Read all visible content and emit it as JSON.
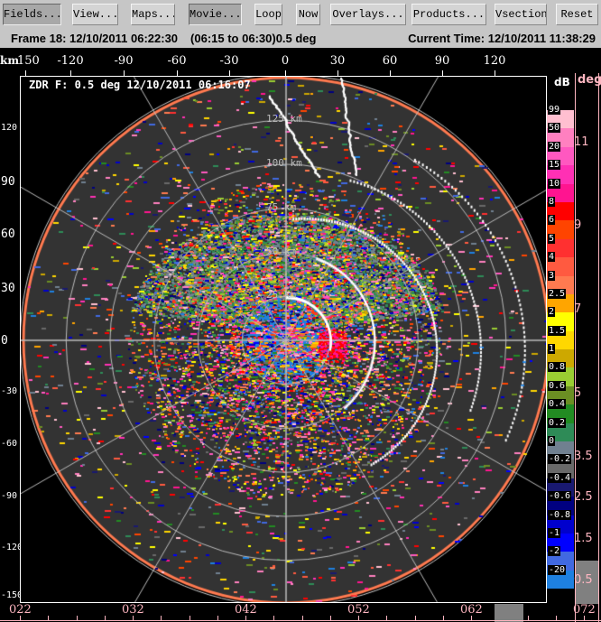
{
  "toolbar": {
    "buttons": [
      {
        "label": "Fields...",
        "pressed": true
      },
      {
        "label": "View...",
        "pressed": false
      },
      {
        "label": "Maps...",
        "pressed": false
      },
      {
        "label": "Movie...",
        "pressed": true
      },
      {
        "label": "Loop",
        "pressed": false
      },
      {
        "label": "Now",
        "pressed": false
      },
      {
        "label": "Overlays...",
        "pressed": false
      },
      {
        "label": "Products...",
        "pressed": false
      },
      {
        "label": "Vsection",
        "pressed": false
      },
      {
        "label": "Reset",
        "pressed": false
      }
    ]
  },
  "status": {
    "frame": "Frame 18: 12/10/2011 06:22:30",
    "range": "(06:15 to 06:30)",
    "elevation": "0.5 deg",
    "current_time": "Current Time: 12/10/2011 11:38:29"
  },
  "axes": {
    "x_unit": "km",
    "x_ticks": [
      "150",
      "-120",
      "-90",
      "-60",
      "-30",
      "0",
      "30",
      "60",
      "90",
      "120"
    ],
    "y_ticks": [
      "120",
      "90",
      "60",
      "30",
      "0",
      "-30",
      "-60",
      "-90",
      "-120",
      "-150"
    ]
  },
  "plot": {
    "title": "ZDR F: 0.5 deg 12/10/2011 06:16:07",
    "range_rings": [
      "25 km",
      "50 km",
      "75 km",
      "100 km",
      "125 km"
    ]
  },
  "colorscale": {
    "unit": "dB",
    "entries": [
      {
        "label": "99",
        "color": "#ffbfd0"
      },
      {
        "label": "50",
        "color": "#ff80c0"
      },
      {
        "label": "20",
        "color": "#ff58c0"
      },
      {
        "label": "15",
        "color": "#ff30b4"
      },
      {
        "label": "10",
        "color": "#ff1490"
      },
      {
        "label": "8",
        "color": "#ff0000"
      },
      {
        "label": "6",
        "color": "#ff4400"
      },
      {
        "label": "5",
        "color": "#ff3030"
      },
      {
        "label": "4",
        "color": "#ff5a40"
      },
      {
        "label": "3",
        "color": "#ff7a50"
      },
      {
        "label": "2.5",
        "color": "#ffa500"
      },
      {
        "label": "2",
        "color": "#ffff00"
      },
      {
        "label": "1.5",
        "color": "#ffd700"
      },
      {
        "label": "1",
        "color": "#cda800"
      },
      {
        "label": "0.8",
        "color": "#9acd32"
      },
      {
        "label": "0.6",
        "color": "#6b8e23"
      },
      {
        "label": "0.4",
        "color": "#228b22"
      },
      {
        "label": "0.2",
        "color": "#2e8b57"
      },
      {
        "label": "0",
        "color": "#708090"
      },
      {
        "label": "-0.2",
        "color": "#696969"
      },
      {
        "label": "-0.4",
        "color": "#191970"
      },
      {
        "label": "-0.6",
        "color": "#000080"
      },
      {
        "label": "-0.8",
        "color": "#0000cd"
      },
      {
        "label": "-1",
        "color": "#0000ff"
      },
      {
        "label": "-2",
        "color": "#4169e1"
      },
      {
        "label": "-20",
        "color": "#1e80e0"
      }
    ]
  },
  "elevation_scale": {
    "unit": "deg",
    "labels": [
      "11",
      "9",
      "7",
      "5",
      "3.5",
      "2.5",
      "1.5",
      "0.5"
    ],
    "color": "#ffb6c1"
  },
  "time_axis": {
    "labels": [
      "022",
      "032",
      "042",
      "052",
      "062",
      "072"
    ]
  }
}
